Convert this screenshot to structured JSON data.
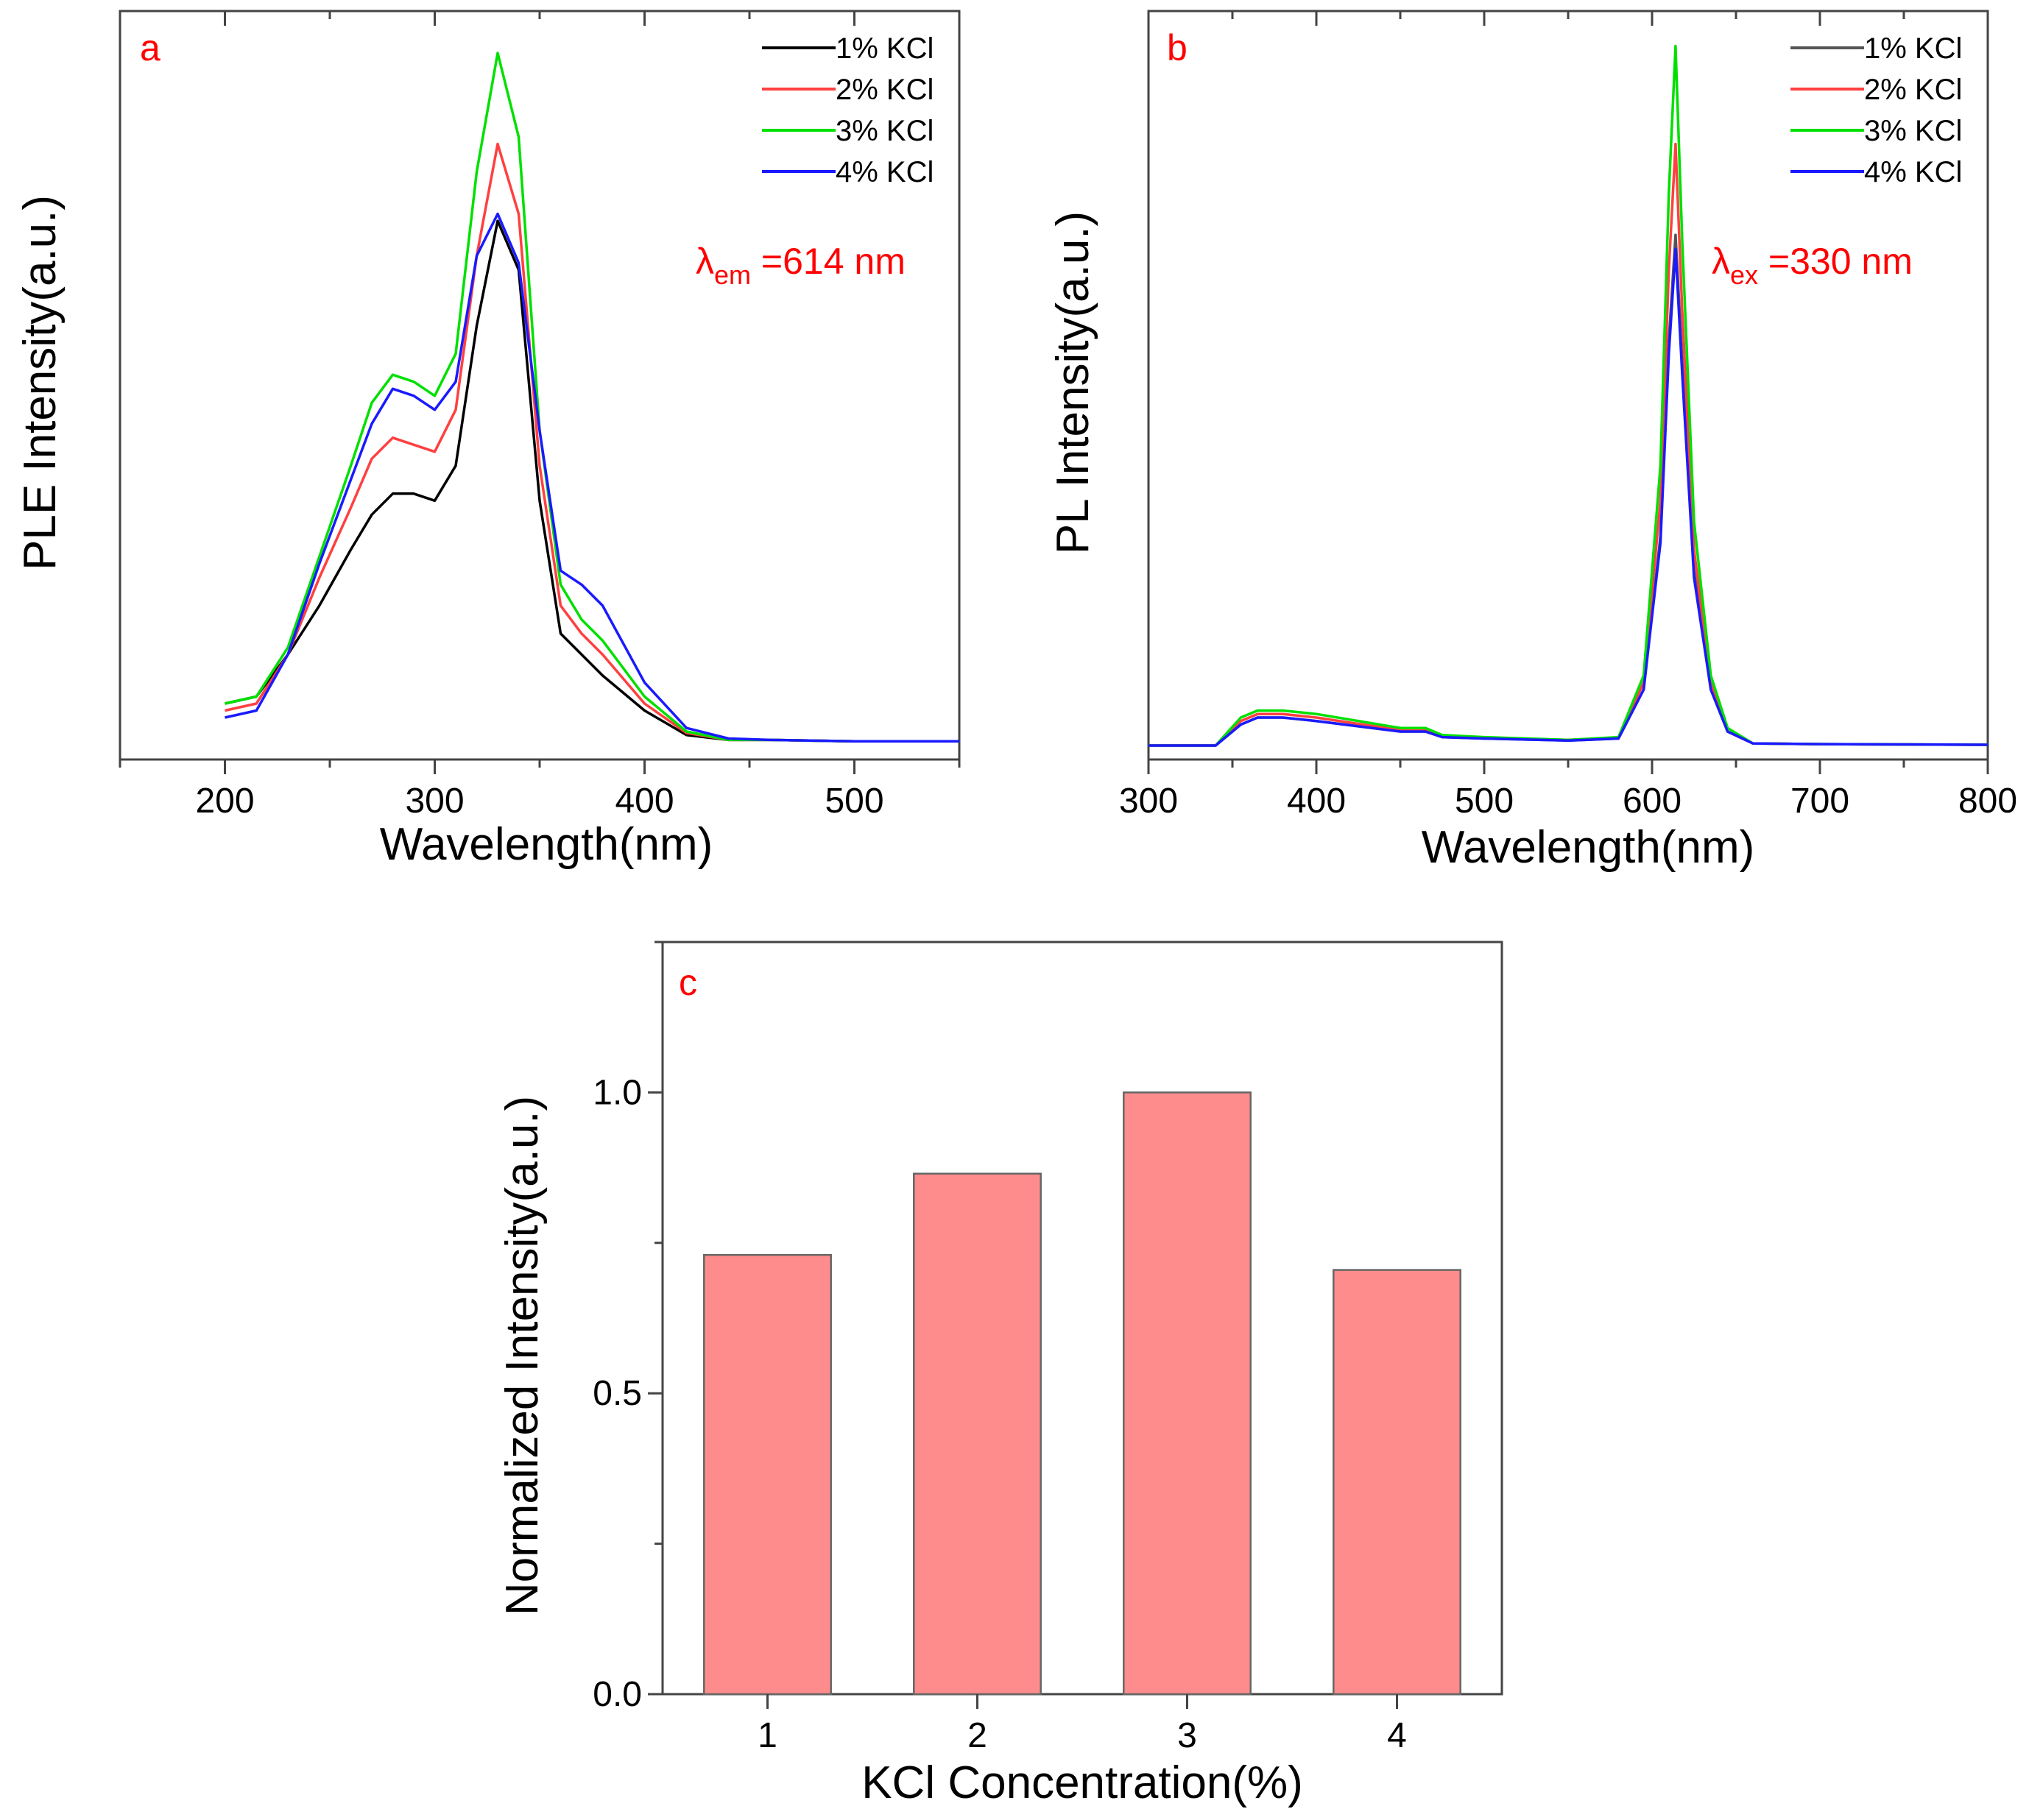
{
  "chart_data": [
    {
      "panel": "a",
      "type": "line",
      "xlabel": "Wavelength(nm)",
      "ylabel": "PLE Intensity(a.u.)",
      "xlim": [
        150,
        550
      ],
      "ylim": [
        -0.02,
        1.05
      ],
      "xticks": [
        200,
        300,
        400,
        500
      ],
      "y_tick_labels_shown": false,
      "annotation": {
        "symbol": "λ",
        "subscript": "em",
        "text": " =614 nm"
      },
      "legend_position": "top-right",
      "series": [
        {
          "name": "1% KCl",
          "color": "#000000",
          "x": [
            200,
            215,
            230,
            245,
            260,
            270,
            280,
            290,
            300,
            310,
            320,
            330,
            340,
            350,
            360,
            370,
            380,
            400,
            420,
            440,
            460,
            500,
            550
          ],
          "y": [
            0.06,
            0.07,
            0.13,
            0.2,
            0.28,
            0.33,
            0.36,
            0.36,
            0.35,
            0.4,
            0.6,
            0.75,
            0.68,
            0.35,
            0.16,
            0.13,
            0.1,
            0.05,
            0.015,
            0.008,
            0.008,
            0.006,
            0.006
          ]
        },
        {
          "name": "2% KCl",
          "color": "#ff4040",
          "x": [
            200,
            215,
            230,
            245,
            260,
            270,
            280,
            290,
            300,
            310,
            320,
            330,
            340,
            350,
            360,
            370,
            380,
            400,
            420,
            440,
            460,
            500,
            550
          ],
          "y": [
            0.05,
            0.06,
            0.13,
            0.24,
            0.34,
            0.41,
            0.44,
            0.43,
            0.42,
            0.48,
            0.7,
            0.86,
            0.76,
            0.4,
            0.2,
            0.16,
            0.13,
            0.06,
            0.018,
            0.008,
            0.008,
            0.006,
            0.006
          ]
        },
        {
          "name": "3% KCl",
          "color": "#00e000",
          "x": [
            200,
            215,
            230,
            245,
            260,
            270,
            280,
            290,
            300,
            310,
            320,
            330,
            340,
            350,
            360,
            370,
            380,
            400,
            420,
            440,
            460,
            500,
            550
          ],
          "y": [
            0.06,
            0.07,
            0.14,
            0.27,
            0.4,
            0.49,
            0.53,
            0.52,
            0.5,
            0.56,
            0.82,
            0.99,
            0.87,
            0.45,
            0.23,
            0.18,
            0.15,
            0.07,
            0.02,
            0.008,
            0.008,
            0.006,
            0.006
          ]
        },
        {
          "name": "4% KCl",
          "color": "#1a1aff",
          "x": [
            200,
            215,
            230,
            245,
            260,
            270,
            280,
            290,
            300,
            310,
            320,
            330,
            340,
            350,
            360,
            370,
            380,
            400,
            420,
            440,
            460,
            500,
            550
          ],
          "y": [
            0.04,
            0.05,
            0.13,
            0.26,
            0.38,
            0.46,
            0.51,
            0.5,
            0.48,
            0.52,
            0.7,
            0.76,
            0.69,
            0.45,
            0.25,
            0.23,
            0.2,
            0.09,
            0.025,
            0.01,
            0.008,
            0.006,
            0.006
          ]
        }
      ]
    },
    {
      "panel": "b",
      "type": "line",
      "xlabel": "Wavelength(nm)",
      "ylabel": "PL Intensity(a.u.)",
      "xlim": [
        300,
        800
      ],
      "ylim": [
        -0.02,
        1.05
      ],
      "xticks": [
        300,
        400,
        500,
        600,
        700,
        800
      ],
      "y_tick_labels_shown": false,
      "annotation": {
        "symbol": "λ",
        "subscript": "ex",
        "text": " =330 nm"
      },
      "legend_position": "top-right",
      "series": [
        {
          "name": "1% KCl",
          "color": "#555555",
          "x": [
            300,
            340,
            355,
            365,
            380,
            400,
            450,
            465,
            475,
            500,
            550,
            580,
            595,
            605,
            610,
            614,
            618,
            625,
            635,
            645,
            660,
            700,
            800
          ],
          "y": [
            0.0,
            0.0,
            0.03,
            0.04,
            0.04,
            0.035,
            0.02,
            0.02,
            0.012,
            0.01,
            0.007,
            0.01,
            0.08,
            0.3,
            0.58,
            0.73,
            0.55,
            0.25,
            0.08,
            0.02,
            0.003,
            0.002,
            0.001
          ]
        },
        {
          "name": "2% KCl",
          "color": "#ff4040",
          "x": [
            300,
            340,
            355,
            365,
            380,
            400,
            450,
            465,
            475,
            500,
            550,
            580,
            595,
            605,
            610,
            614,
            618,
            625,
            635,
            645,
            660,
            700,
            800
          ],
          "y": [
            0.0,
            0.0,
            0.035,
            0.045,
            0.045,
            0.04,
            0.022,
            0.022,
            0.013,
            0.011,
            0.008,
            0.011,
            0.09,
            0.35,
            0.68,
            0.86,
            0.62,
            0.28,
            0.09,
            0.02,
            0.003,
            0.002,
            0.001
          ]
        },
        {
          "name": "3% KCl",
          "color": "#00e000",
          "x": [
            300,
            340,
            355,
            365,
            380,
            400,
            450,
            465,
            475,
            500,
            550,
            580,
            595,
            605,
            610,
            614,
            618,
            625,
            635,
            645,
            660,
            700,
            800
          ],
          "y": [
            0.0,
            0.0,
            0.04,
            0.05,
            0.05,
            0.045,
            0.025,
            0.025,
            0.015,
            0.012,
            0.008,
            0.012,
            0.1,
            0.4,
            0.79,
            1.0,
            0.72,
            0.32,
            0.1,
            0.025,
            0.003,
            0.002,
            0.001
          ]
        },
        {
          "name": "4% KCl",
          "color": "#1a1aff",
          "x": [
            300,
            340,
            355,
            365,
            380,
            400,
            450,
            465,
            475,
            500,
            550,
            580,
            595,
            605,
            610,
            614,
            618,
            625,
            635,
            645,
            660,
            700,
            800
          ],
          "y": [
            0.0,
            0.0,
            0.03,
            0.04,
            0.04,
            0.035,
            0.02,
            0.02,
            0.012,
            0.01,
            0.007,
            0.01,
            0.08,
            0.29,
            0.56,
            0.71,
            0.53,
            0.24,
            0.08,
            0.02,
            0.003,
            0.002,
            0.001
          ]
        }
      ]
    },
    {
      "panel": "c",
      "type": "bar",
      "xlabel": "KCl Concentration(%)",
      "ylabel": "Normalized Intensity(a.u.)",
      "categories": [
        "1",
        "2",
        "3",
        "4"
      ],
      "values": [
        0.73,
        0.865,
        1.0,
        0.705
      ],
      "ylim": [
        0.0,
        1.25
      ],
      "yticks": [
        0.0,
        0.5,
        1.0
      ],
      "ytick_labels": [
        "0.0",
        "0.5",
        "1.0"
      ],
      "bar_color": "#ff8c8c",
      "grid": false
    }
  ]
}
